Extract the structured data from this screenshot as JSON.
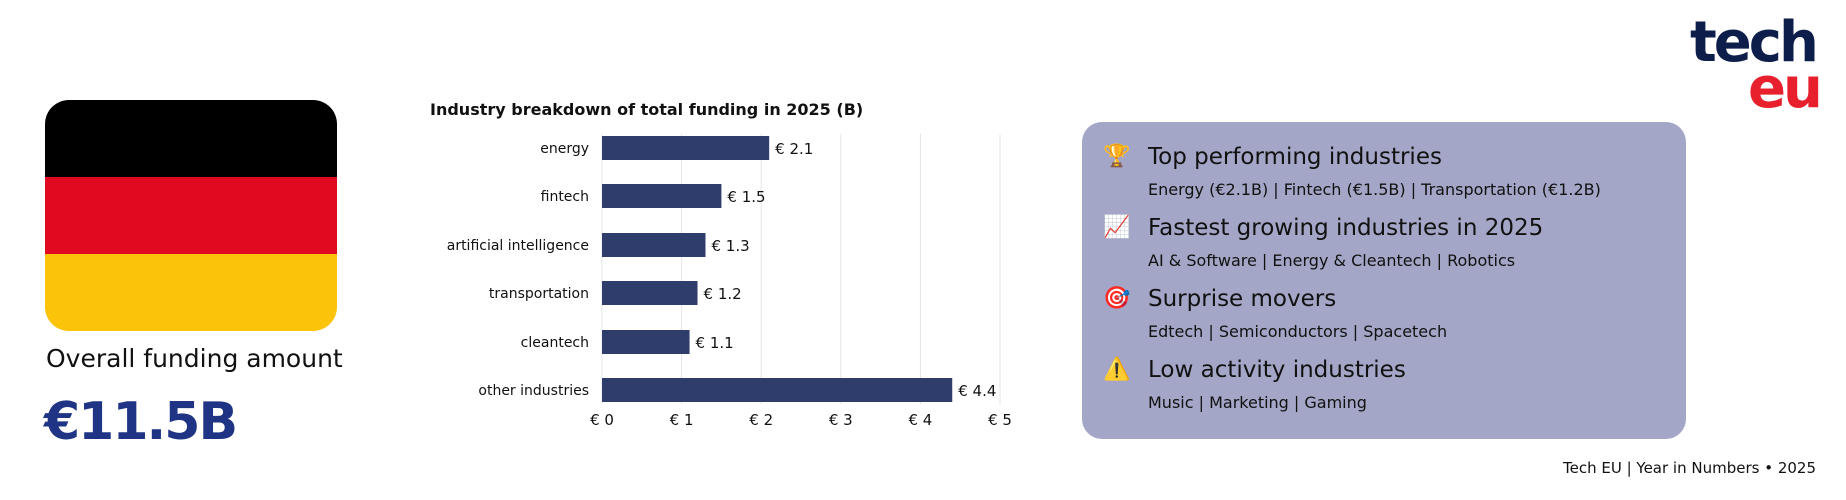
{
  "flag": {
    "colors": [
      "#000000",
      "#e1091f",
      "#fcc30b"
    ]
  },
  "summary": {
    "label": "Overall funding amount",
    "amount": "€11.5B"
  },
  "chart_data": {
    "type": "bar",
    "orientation": "horizontal",
    "title": "Industry breakdown of total funding in 2025 (B)",
    "categories": [
      "energy",
      "fintech",
      "artificial intelligence",
      "transportation",
      "cleantech",
      "other industries"
    ],
    "values": [
      2.1,
      1.5,
      1.3,
      1.2,
      1.1,
      4.4
    ],
    "data_labels": [
      "€ 2.1",
      "€ 1.5",
      "€ 1.3",
      "€ 1.2",
      "€ 1.1",
      "€ 4.4"
    ],
    "xlim": [
      0,
      5
    ],
    "ticks": [
      "€ 0",
      "€ 1",
      "€ 2",
      "€ 3",
      "€ 4",
      "€ 5"
    ],
    "grid": true,
    "bar_color": "#2e3d6b"
  },
  "panel": {
    "items": [
      {
        "icon": "🏆",
        "icon_name": "trophy-icon",
        "heading": "Top performing industries",
        "sub": "Energy (€2.1B) | Fintech (€1.5B) | Transportation (€1.2B)"
      },
      {
        "icon": "📈",
        "icon_name": "chart-up-icon",
        "heading": "Fastest growing industries in 2025",
        "sub": "AI & Software | Energy & Cleantech | Robotics"
      },
      {
        "icon": "🎯",
        "icon_name": "target-icon",
        "heading": "Surprise movers",
        "sub": "Edtech | Semiconductors | Spacetech"
      },
      {
        "icon": "⚠️",
        "icon_name": "warning-icon",
        "heading": "Low activity industries",
        "sub": "Music | Marketing | Gaming"
      }
    ]
  },
  "footer": "Tech EU | Year in Numbers • 2025",
  "logo": {
    "line1": "tech",
    "line2": "eu"
  }
}
